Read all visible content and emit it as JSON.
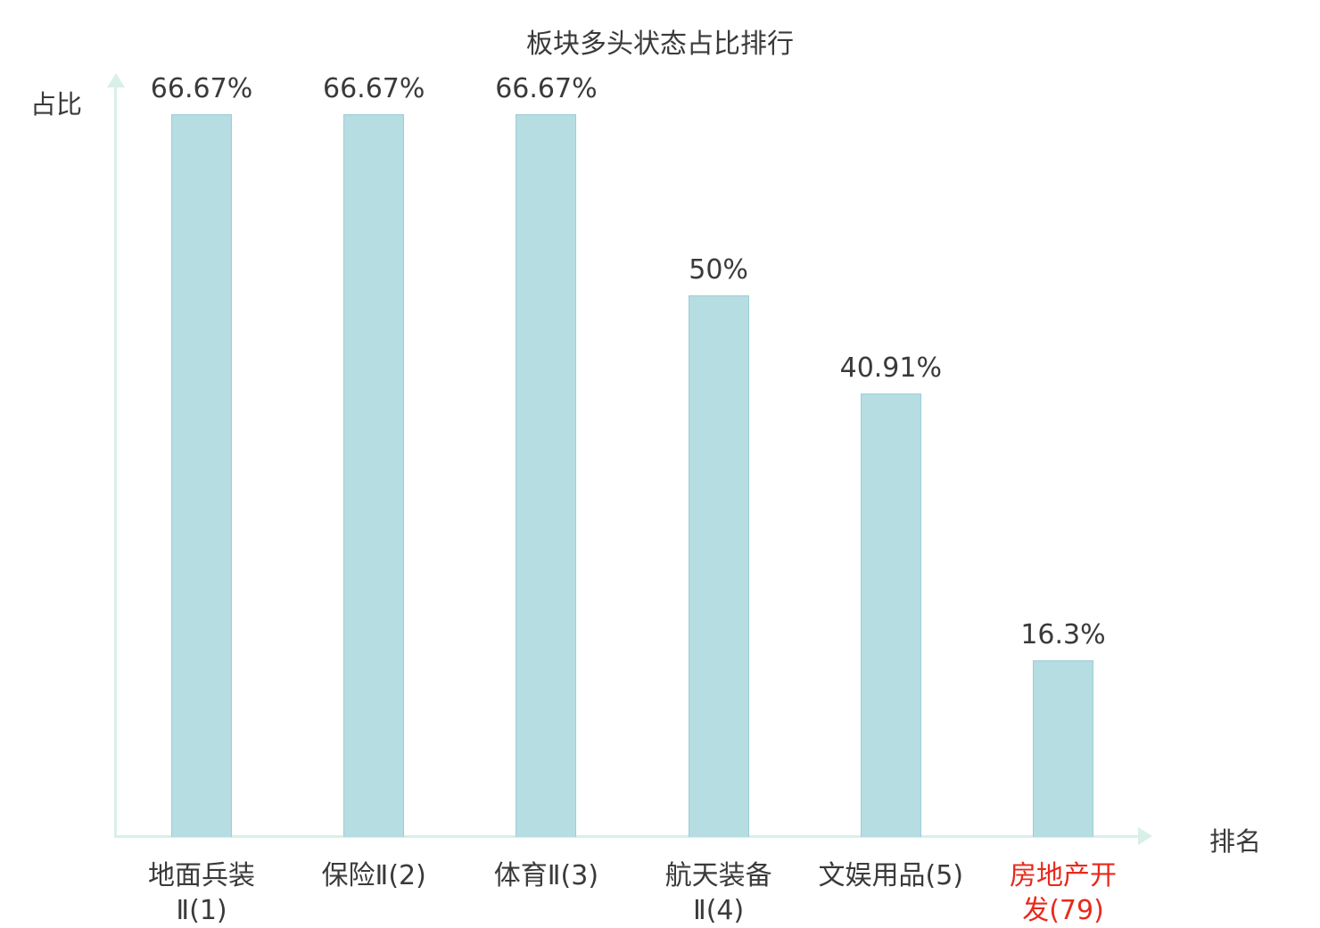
{
  "title": "板块多头状态占比排行",
  "axis": {
    "y_label": "占比",
    "x_label": "排名"
  },
  "colors": {
    "bar_fill": "#b5dde2",
    "bar_border": "#9ecdd6",
    "axis": "#d8f0e8",
    "text": "#3a3a3a",
    "highlight": "#e8291c"
  },
  "chart_data": {
    "type": "bar",
    "title": "板块多头状态占比排行",
    "xlabel": "排名",
    "ylabel": "占比",
    "ylim": [
      0,
      70
    ],
    "grid": false,
    "legend": "none",
    "categories": [
      "地面兵装Ⅱ(1)",
      "保险Ⅱ(2)",
      "体育Ⅱ(3)",
      "航天装备Ⅱ(4)",
      "文娱用品(5)",
      "房地产开发(79)"
    ],
    "category_lines": [
      [
        "地面兵装",
        "Ⅱ(1)"
      ],
      [
        "保险Ⅱ(2)"
      ],
      [
        "体育Ⅱ(3)"
      ],
      [
        "航天装备",
        "Ⅱ(4)"
      ],
      [
        "文娱用品(5)"
      ],
      [
        "房地产开",
        "发(79)"
      ]
    ],
    "values": [
      66.67,
      66.67,
      66.67,
      50,
      40.91,
      16.3
    ],
    "value_labels": [
      "66.67%",
      "66.67%",
      "66.67%",
      "50%",
      "40.91%",
      "16.3%"
    ],
    "highlighted_category_index": 5
  }
}
